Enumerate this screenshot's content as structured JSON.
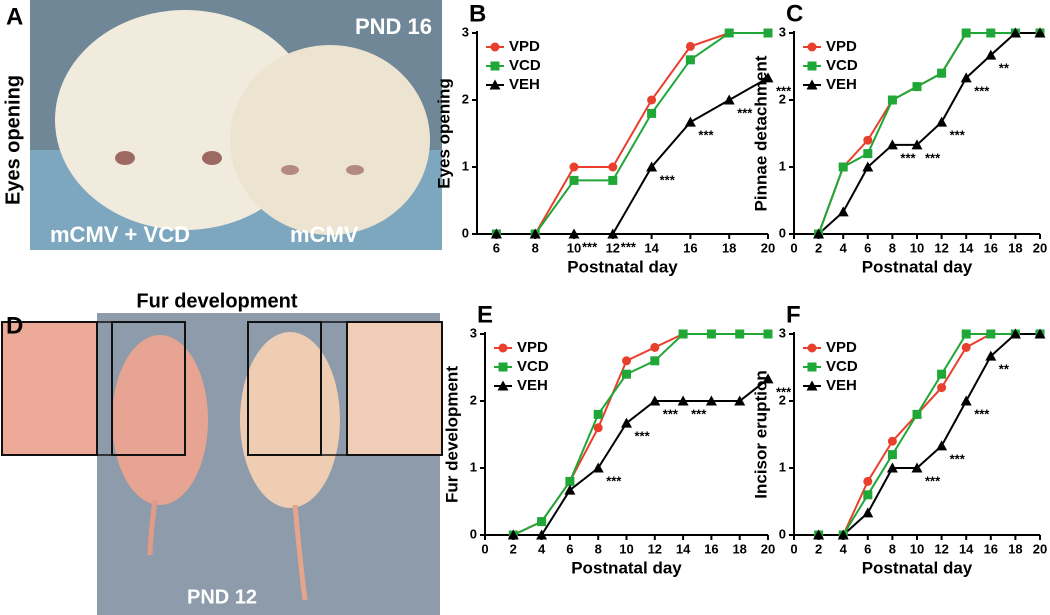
{
  "figure": {
    "panel_a": {
      "letter": "A",
      "ylabel": "Eyes opening",
      "stage": "PND 16",
      "left_label": "mCMV + VCD",
      "right_label": "mCMV"
    },
    "panel_d": {
      "letter": "D",
      "title": "Fur development",
      "stage": "PND 12"
    }
  },
  "chart_data": [
    {
      "type": "line",
      "panel": "B",
      "ylabel": "Eyes opening",
      "xlabel": "Postnatal day",
      "x": [
        6,
        8,
        10,
        12,
        14,
        16,
        18,
        20
      ],
      "xlim": [
        5,
        20
      ],
      "xticks": [
        6,
        8,
        10,
        12,
        14,
        16,
        18,
        20
      ],
      "ylim": [
        0,
        3
      ],
      "yticks": [
        0,
        1,
        2,
        3
      ],
      "series": [
        {
          "name": "VPD",
          "color": "#e8402c",
          "marker": "circle",
          "values": [
            0,
            0,
            1,
            1,
            2,
            2.8,
            3,
            3
          ]
        },
        {
          "name": "VCD",
          "color": "#1fa838",
          "marker": "square",
          "values": [
            0,
            0,
            0.8,
            0.8,
            1.8,
            2.6,
            3,
            3
          ]
        },
        {
          "name": "VEH",
          "color": "#000000",
          "marker": "triangle",
          "values": [
            0,
            0,
            0,
            0,
            1,
            1.67,
            2,
            2.33
          ]
        }
      ],
      "annotations": [
        {
          "x": 10,
          "text": "***"
        },
        {
          "x": 12,
          "text": "***"
        },
        {
          "x": 14,
          "text": "***"
        },
        {
          "x": 16,
          "text": "***"
        },
        {
          "x": 18,
          "text": "***"
        },
        {
          "x": 20,
          "text": "***"
        }
      ]
    },
    {
      "type": "line",
      "panel": "C",
      "ylabel": "Pinnae detachment",
      "xlabel": "Postnatal day",
      "x": [
        2,
        4,
        6,
        8,
        10,
        12,
        14,
        16,
        18,
        20
      ],
      "xlim": [
        0,
        20
      ],
      "xticks": [
        0,
        2,
        4,
        6,
        8,
        10,
        12,
        14,
        16,
        18,
        20
      ],
      "ylim": [
        0,
        3
      ],
      "yticks": [
        0,
        1,
        2,
        3
      ],
      "series": [
        {
          "name": "VPD",
          "color": "#e8402c",
          "marker": "circle",
          "values": [
            0,
            1,
            1.4,
            2,
            2.2,
            2.4,
            3,
            3,
            3,
            3
          ]
        },
        {
          "name": "VCD",
          "color": "#1fa838",
          "marker": "square",
          "values": [
            0,
            1,
            1.2,
            2,
            2.2,
            2.4,
            3,
            3,
            3,
            3
          ]
        },
        {
          "name": "VEH",
          "color": "#000000",
          "marker": "triangle",
          "values": [
            0,
            0.33,
            1,
            1.33,
            1.33,
            1.67,
            2.33,
            2.67,
            3,
            3
          ]
        }
      ],
      "annotations": [
        {
          "x": 8,
          "text": "***"
        },
        {
          "x": 10,
          "text": "***"
        },
        {
          "x": 12,
          "text": "***"
        },
        {
          "x": 14,
          "text": "***"
        },
        {
          "x": 16,
          "text": "**"
        }
      ]
    },
    {
      "type": "line",
      "panel": "E",
      "ylabel": "Fur development",
      "xlabel": "Postnatal day",
      "x": [
        2,
        4,
        6,
        8,
        10,
        12,
        14,
        16,
        18,
        20
      ],
      "xlim": [
        0,
        20
      ],
      "xticks": [
        0,
        2,
        4,
        6,
        8,
        10,
        12,
        14,
        16,
        18,
        20
      ],
      "ylim": [
        0,
        3
      ],
      "yticks": [
        0,
        1,
        2,
        3
      ],
      "series": [
        {
          "name": "VPD",
          "color": "#e8402c",
          "marker": "circle",
          "values": [
            0,
            0.2,
            0.8,
            1.6,
            2.6,
            2.8,
            3,
            3,
            3,
            3
          ]
        },
        {
          "name": "VCD",
          "color": "#1fa838",
          "marker": "square",
          "values": [
            0,
            0.2,
            0.8,
            1.8,
            2.4,
            2.6,
            3,
            3,
            3,
            3
          ]
        },
        {
          "name": "VEH",
          "color": "#000000",
          "marker": "triangle",
          "values": [
            0,
            0,
            0.67,
            1,
            1.67,
            2,
            2,
            2,
            2,
            2.33
          ]
        }
      ],
      "annotations": [
        {
          "x": 8,
          "text": "***"
        },
        {
          "x": 10,
          "text": "***"
        },
        {
          "x": 12,
          "text": "***"
        },
        {
          "x": 14,
          "text": "***"
        },
        {
          "x": 20,
          "text": "***"
        }
      ]
    },
    {
      "type": "line",
      "panel": "F",
      "ylabel": "Incisor eruption",
      "xlabel": "Postnatal day",
      "x": [
        2,
        4,
        6,
        8,
        10,
        12,
        14,
        16,
        18,
        20
      ],
      "xlim": [
        0,
        20
      ],
      "xticks": [
        0,
        2,
        4,
        6,
        8,
        10,
        12,
        14,
        16,
        18,
        20
      ],
      "ylim": [
        0,
        3
      ],
      "yticks": [
        0,
        1,
        2,
        3
      ],
      "series": [
        {
          "name": "VPD",
          "color": "#e8402c",
          "marker": "circle",
          "values": [
            0,
            0,
            0.8,
            1.4,
            1.8,
            2.2,
            2.8,
            3,
            3,
            3
          ]
        },
        {
          "name": "VCD",
          "color": "#1fa838",
          "marker": "square",
          "values": [
            0,
            0,
            0.6,
            1.2,
            1.8,
            2.4,
            3,
            3,
            3,
            3
          ]
        },
        {
          "name": "VEH",
          "color": "#000000",
          "marker": "triangle",
          "values": [
            0,
            0,
            0.33,
            1,
            1,
            1.33,
            2,
            2.67,
            3,
            3
          ]
        }
      ],
      "annotations": [
        {
          "x": 10,
          "text": "***"
        },
        {
          "x": 12,
          "text": "***"
        },
        {
          "x": 14,
          "text": "***"
        },
        {
          "x": 16,
          "text": "**"
        }
      ]
    }
  ]
}
